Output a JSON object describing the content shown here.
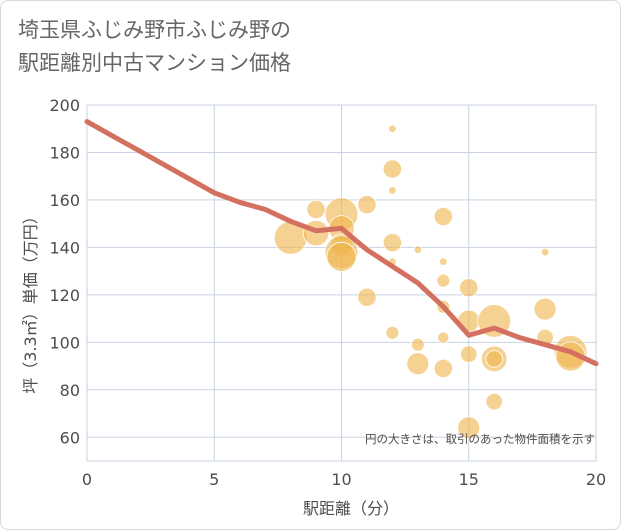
{
  "title_line1": "埼玉県ふじみ野市ふじみ野の",
  "title_line2": "駅距離別中古マンション価格",
  "note": "円の大きさは、取引のあった物件面積を示す",
  "colors": {
    "bubble": "#f0b44a",
    "line": "#d4705f",
    "grid": "#c9d3e3"
  },
  "chart_data": {
    "type": "scatter",
    "xlabel": "駅距離（分）",
    "ylabel": "坪（3.3㎡）単価（万円）",
    "xlim": [
      0,
      20
    ],
    "ylim": [
      50,
      200
    ],
    "xticks": [
      0,
      5,
      10,
      15,
      20
    ],
    "yticks": [
      60,
      80,
      100,
      120,
      140,
      160,
      180,
      200
    ],
    "grid": true,
    "trend_line": [
      [
        0,
        193
      ],
      [
        1,
        187
      ],
      [
        2,
        181
      ],
      [
        3,
        175
      ],
      [
        4,
        169
      ],
      [
        5,
        163
      ],
      [
        6,
        159
      ],
      [
        7,
        156
      ],
      [
        8,
        151
      ],
      [
        9,
        147
      ],
      [
        10,
        148
      ],
      [
        11,
        139
      ],
      [
        12,
        132
      ],
      [
        13,
        125
      ],
      [
        14,
        115
      ],
      [
        15,
        103
      ],
      [
        16,
        106
      ],
      [
        17,
        102
      ],
      [
        18,
        99
      ],
      [
        19,
        96
      ],
      [
        20,
        91
      ]
    ],
    "points": [
      {
        "x": 8,
        "y": 144,
        "size": 16
      },
      {
        "x": 9,
        "y": 156,
        "size": 8
      },
      {
        "x": 9,
        "y": 146,
        "size": 12
      },
      {
        "x": 10,
        "y": 154,
        "size": 16
      },
      {
        "x": 10,
        "y": 148,
        "size": 12
      },
      {
        "x": 10,
        "y": 141,
        "size": 10
      },
      {
        "x": 10,
        "y": 138,
        "size": 16
      },
      {
        "x": 10,
        "y": 136,
        "size": 14
      },
      {
        "x": 11,
        "y": 158,
        "size": 8
      },
      {
        "x": 11,
        "y": 119,
        "size": 8
      },
      {
        "x": 12,
        "y": 190,
        "size": 2
      },
      {
        "x": 12,
        "y": 173,
        "size": 8
      },
      {
        "x": 12,
        "y": 164,
        "size": 2
      },
      {
        "x": 12,
        "y": 142,
        "size": 8
      },
      {
        "x": 12,
        "y": 134,
        "size": 2
      },
      {
        "x": 12,
        "y": 104,
        "size": 5
      },
      {
        "x": 13,
        "y": 139,
        "size": 2
      },
      {
        "x": 13,
        "y": 99,
        "size": 5
      },
      {
        "x": 13,
        "y": 91,
        "size": 10
      },
      {
        "x": 14,
        "y": 153,
        "size": 8
      },
      {
        "x": 14,
        "y": 134,
        "size": 2
      },
      {
        "x": 14,
        "y": 126,
        "size": 5
      },
      {
        "x": 14,
        "y": 115,
        "size": 5
      },
      {
        "x": 14,
        "y": 102,
        "size": 4
      },
      {
        "x": 14,
        "y": 89,
        "size": 8
      },
      {
        "x": 15,
        "y": 123,
        "size": 8
      },
      {
        "x": 15,
        "y": 109,
        "size": 10
      },
      {
        "x": 15,
        "y": 95,
        "size": 7
      },
      {
        "x": 15,
        "y": 64,
        "size": 10
      },
      {
        "x": 16,
        "y": 109,
        "size": 16
      },
      {
        "x": 16,
        "y": 93,
        "size": 12
      },
      {
        "x": 16,
        "y": 93,
        "size": 7
      },
      {
        "x": 16,
        "y": 75,
        "size": 7
      },
      {
        "x": 18,
        "y": 138,
        "size": 2
      },
      {
        "x": 18,
        "y": 114,
        "size": 10
      },
      {
        "x": 18,
        "y": 102,
        "size": 7
      },
      {
        "x": 19,
        "y": 96,
        "size": 16
      },
      {
        "x": 19,
        "y": 94,
        "size": 14
      }
    ]
  }
}
